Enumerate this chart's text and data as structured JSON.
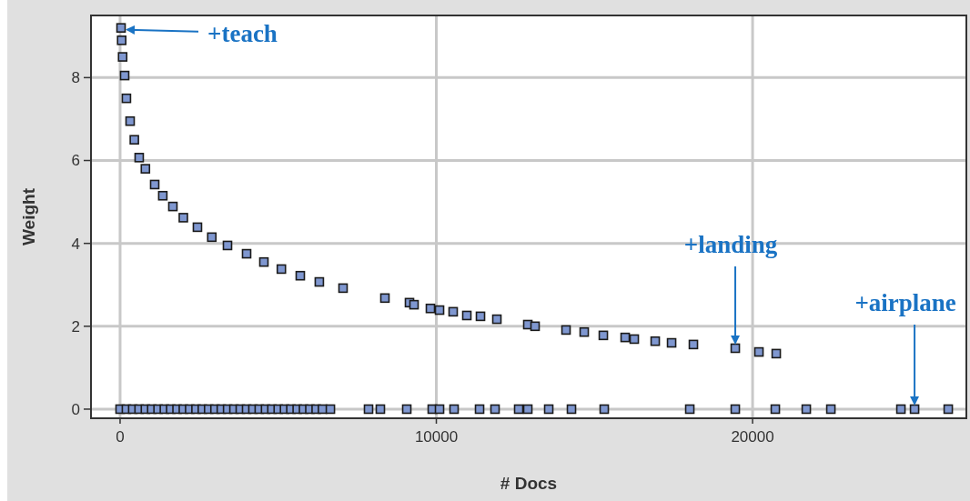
{
  "chart_data": {
    "type": "scatter",
    "xlabel": "# Docs",
    "ylabel": "Weight",
    "xlim": [
      -920,
      26760
    ],
    "ylim": [
      -0.22,
      9.5
    ],
    "xticks": [
      0,
      10000,
      20000
    ],
    "yticks": [
      0,
      2,
      4,
      6,
      8
    ],
    "grid": true,
    "marker": "square",
    "series": [
      {
        "color": "#7f97d0",
        "x": [
          50,
          80,
          200,
          450,
          800,
          1350,
          2000,
          2900,
          4000,
          5100,
          6300,
          30,
          144,
          317,
          604,
          1094,
          1669,
          2446,
          3396,
          4547,
          5698,
          7050,
          8374,
          9151,
          9295,
          9813,
          10101,
          10532,
          10964,
          11396,
          11914,
          12892,
          13122,
          14101,
          14676,
          15281,
          15971,
          16259,
          16921,
          17439,
          18129,
          19453,
          20201,
          20748,
          0,
          200,
          400,
          600,
          800,
          1000,
          1200,
          1400,
          1600,
          1800,
          2000,
          2200,
          2400,
          2600,
          2800,
          3000,
          3200,
          3400,
          3600,
          3800,
          4000,
          4200,
          4400,
          4600,
          4800,
          5000,
          5200,
          5400,
          5600,
          5800,
          6000,
          6200,
          6400,
          6650,
          7856,
          8230,
          9065,
          9871,
          10101,
          10561,
          11367,
          11856,
          12604,
          12892,
          13554,
          14273,
          15309,
          18014,
          19453,
          20719,
          21698,
          22475,
          24690,
          25122,
          26187
        ],
        "values": [
          8.9,
          8.5,
          7.5,
          6.5,
          5.8,
          5.15,
          4.62,
          4.15,
          3.75,
          3.38,
          3.07,
          9.2,
          8.05,
          6.95,
          6.07,
          5.42,
          4.89,
          4.39,
          3.95,
          3.55,
          3.22,
          2.92,
          2.68,
          2.57,
          2.52,
          2.43,
          2.39,
          2.35,
          2.26,
          2.24,
          2.17,
          2.04,
          2.0,
          1.91,
          1.86,
          1.78,
          1.73,
          1.69,
          1.64,
          1.6,
          1.56,
          1.47,
          1.38,
          1.34,
          0,
          0,
          0,
          0,
          0,
          0,
          0,
          0,
          0,
          0,
          0,
          0,
          0,
          0,
          0,
          0,
          0,
          0,
          0,
          0,
          0,
          0,
          0,
          0,
          0,
          0,
          0,
          0,
          0,
          0,
          0,
          0,
          0,
          0,
          0,
          0,
          0,
          0,
          0,
          0,
          0,
          0,
          0,
          0,
          0,
          0,
          0,
          0,
          0,
          0,
          0,
          0,
          0,
          0,
          0
        ]
      }
    ],
    "annotations": [
      {
        "text": "+teach",
        "x": 30,
        "y": 9.2
      },
      {
        "text": "+landing",
        "x": 19453,
        "y": 1.47
      },
      {
        "text": "+airplane",
        "x": 25122,
        "y": 0
      }
    ]
  }
}
